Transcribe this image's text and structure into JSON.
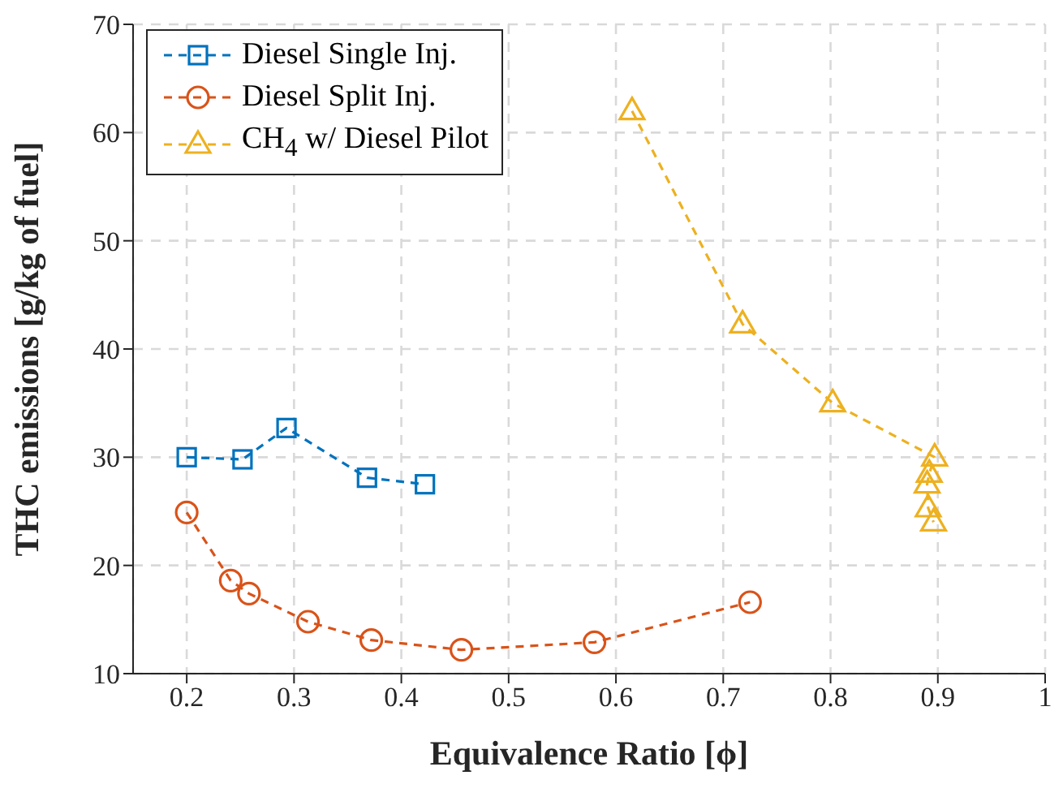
{
  "chart_data": {
    "type": "line",
    "xlabel": "Equivalence Ratio [ϕ]",
    "ylabel": "THC emissions [g/kg of fuel]",
    "xlim": [
      0.15,
      1
    ],
    "xticks": [
      0.2,
      0.3,
      0.4,
      0.5,
      0.6,
      0.7,
      0.8,
      0.9,
      1
    ],
    "ylim": [
      10,
      70
    ],
    "yticks": [
      10,
      20,
      30,
      40,
      50,
      60,
      70
    ],
    "grid": true,
    "legend": "top left",
    "line_style": "dashed",
    "series": [
      {
        "name": "Diesel Single Inj.",
        "color": "#0072bd",
        "marker": "square",
        "x": [
          0.2,
          0.252,
          0.293,
          0.368,
          0.422
        ],
        "values": [
          30,
          29.8,
          32.7,
          28.1,
          27.5
        ]
      },
      {
        "name": "Diesel Split Inj.",
        "color": "#d95319",
        "marker": "circle",
        "x": [
          0.2,
          0.241,
          0.258,
          0.313,
          0.372,
          0.456,
          0.58,
          0.725
        ],
        "values": [
          24.9,
          18.6,
          17.4,
          14.8,
          13.1,
          12.2,
          12.9,
          16.6
        ]
      },
      {
        "name": "CH$_{4}$ w/ Diesel Pilot",
        "color": "#edb120",
        "marker": "triangle",
        "x": [
          0.615,
          0.718,
          0.802,
          0.897,
          0.892,
          0.89,
          0.891,
          0.896
        ],
        "values": [
          62,
          42.3,
          35,
          30,
          28.5,
          27.5,
          25.3,
          24
        ]
      }
    ]
  }
}
